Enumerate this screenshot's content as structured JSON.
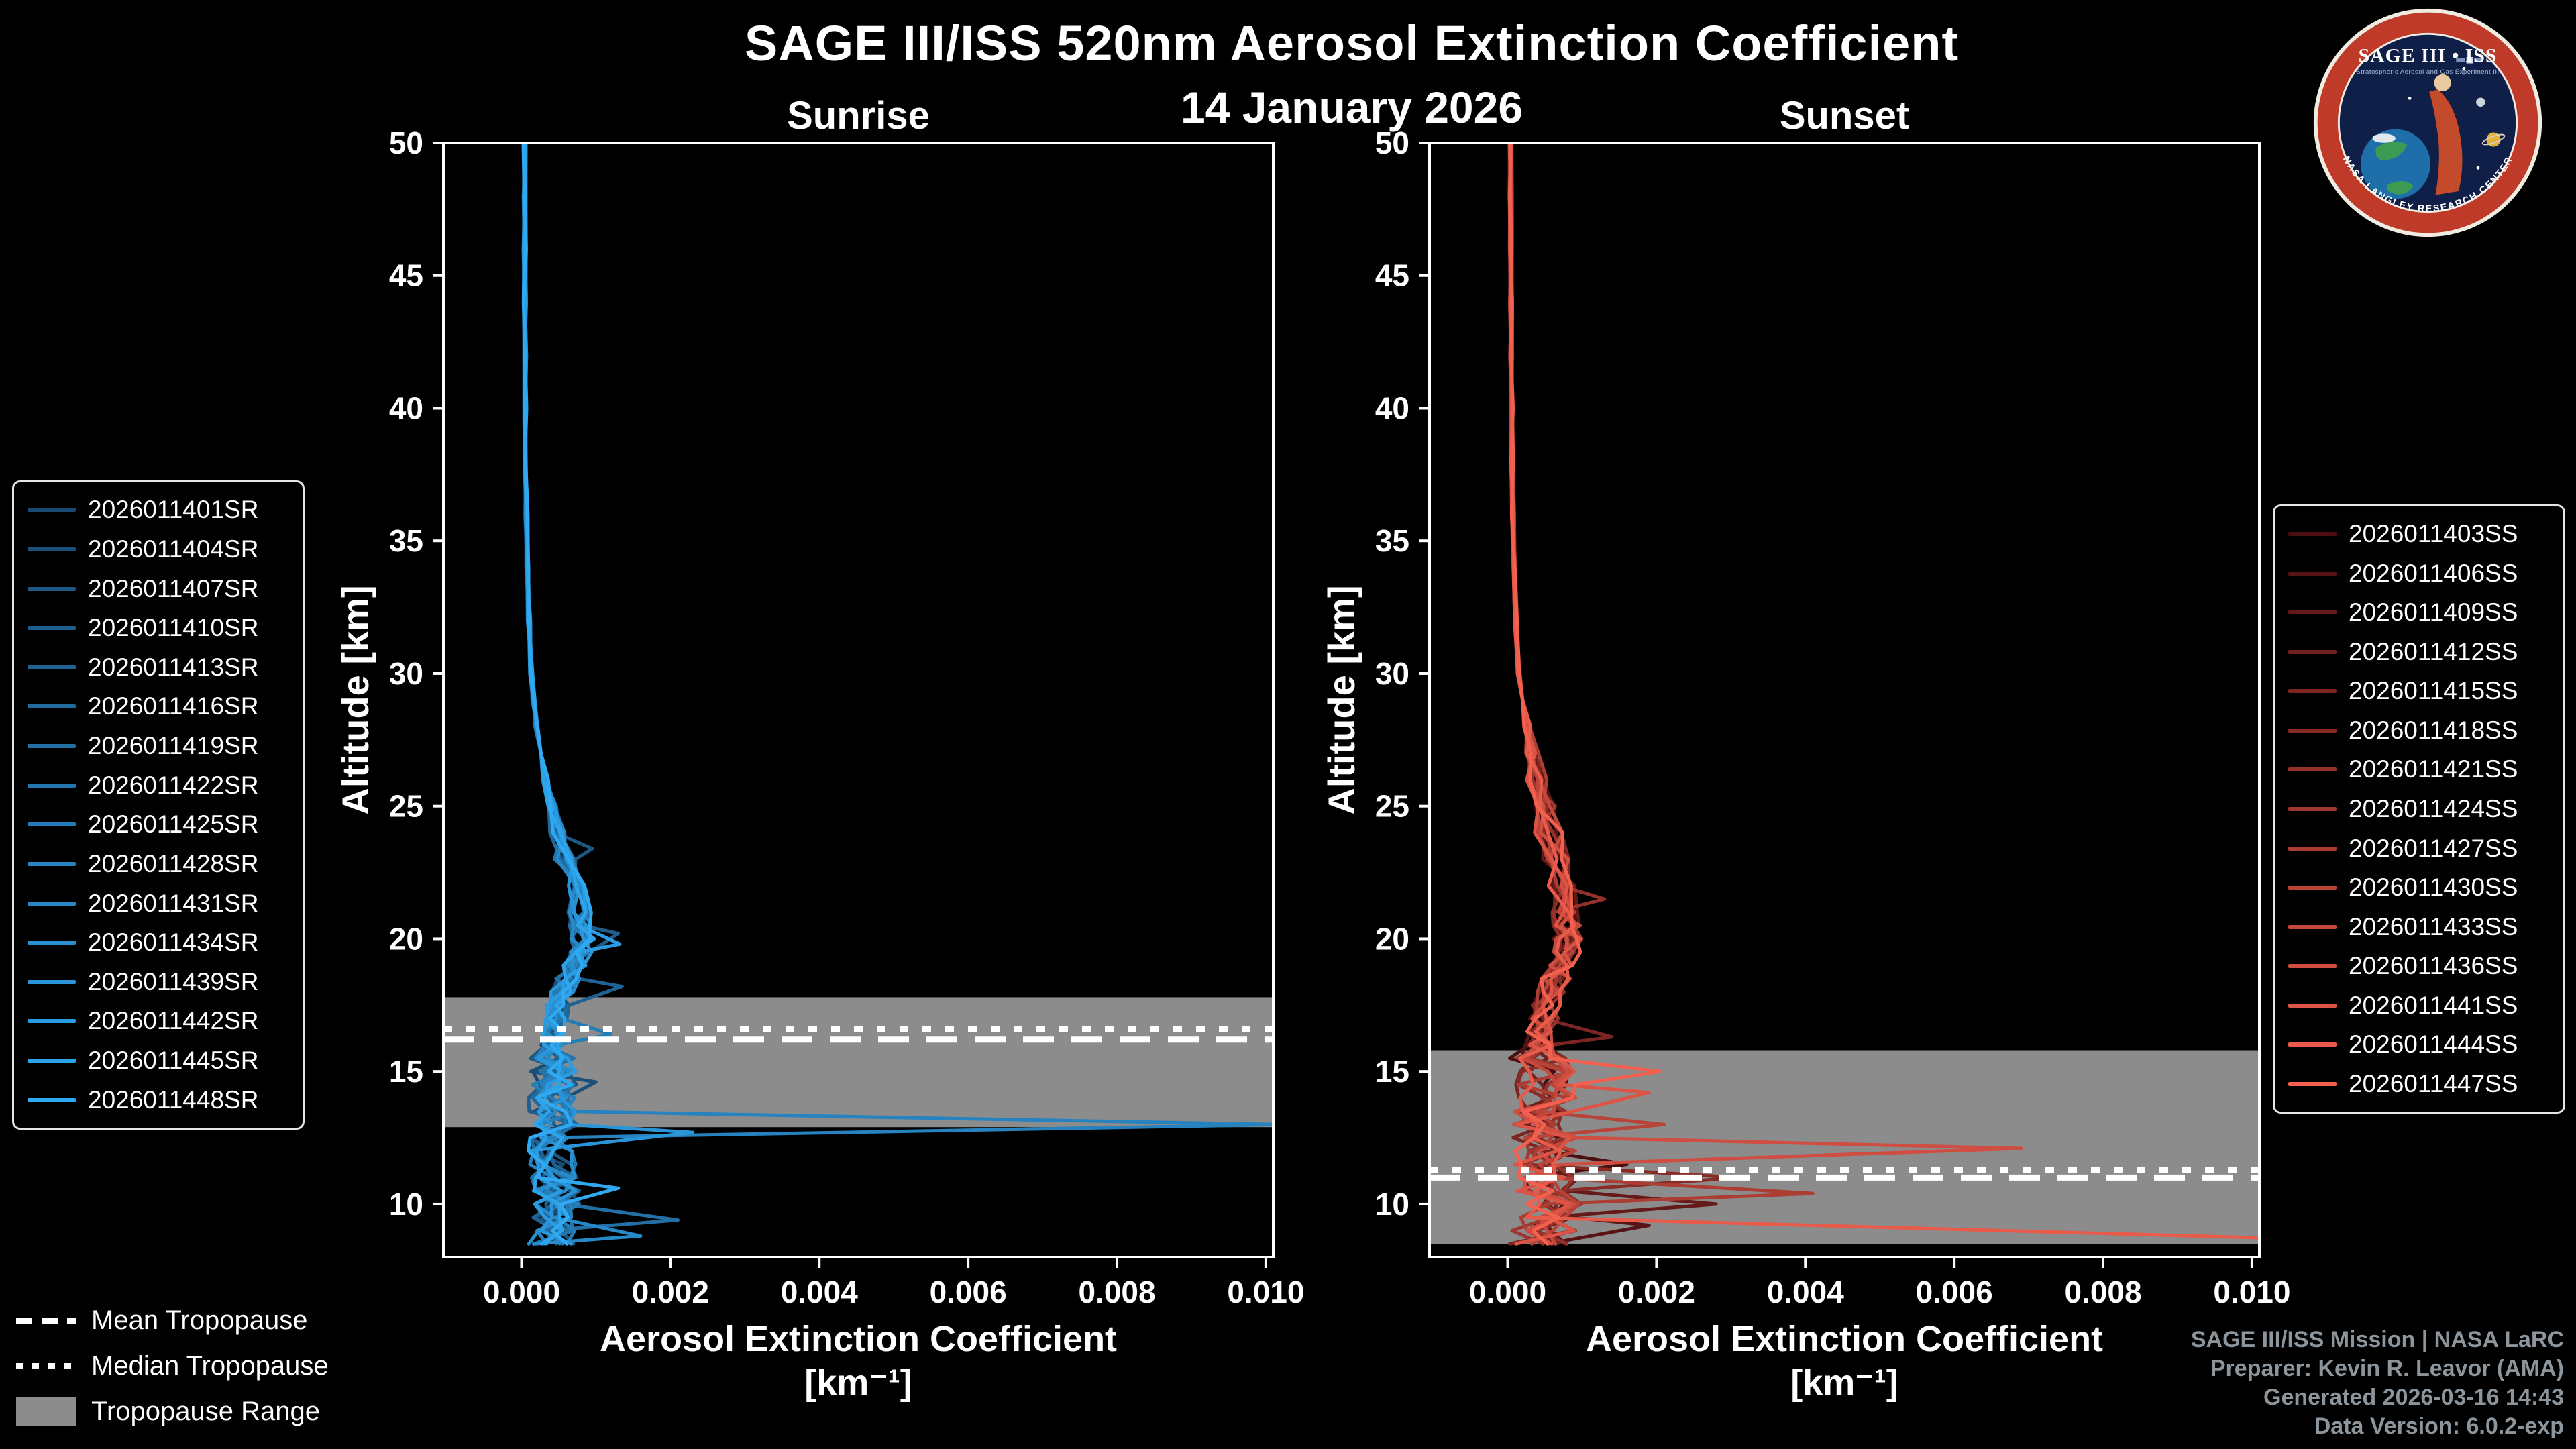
{
  "header": {
    "title": "SAGE III/ISS 520nm Aerosol Extinction Coefficient",
    "subtitle": "14 January 2026"
  },
  "tropopause_legend": {
    "mean_label": "Mean Tropopause",
    "median_label": "Median Tropopause",
    "range_label": "Tropopause Range"
  },
  "credits": {
    "lines": [
      "SAGE III/ISS Mission | NASA LaRC",
      "Preparer: Kevin R. Leavor (AMA)",
      "Generated 2026-03-16 14:43",
      "Data Version: 6.0.2-exp"
    ]
  },
  "logo": {
    "title": "SAGE III • ISS",
    "tagline": "Stratospheric Aerosol and Gas Experiment III",
    "arc_text": "NASA LANGLEY RESEARCH CENTER"
  },
  "chart_data": [
    {
      "id": "sunrise",
      "type": "line",
      "title": "Sunrise",
      "xlabel": "Aerosol Extinction Coefficient",
      "xlabel_units": "[km⁻¹]",
      "ylabel": "Altitude [km]",
      "xlim": [
        -0.00105,
        0.0101
      ],
      "ylim": [
        8.0,
        50
      ],
      "xticks": [
        0,
        0.002,
        0.004,
        0.006,
        0.008,
        0.01
      ],
      "xtick_labels": [
        "0.000",
        "0.002",
        "0.004",
        "0.006",
        "0.008",
        "0.010"
      ],
      "yticks": [
        10,
        15,
        20,
        25,
        30,
        35,
        40,
        45,
        50
      ],
      "grid": false,
      "color_start": "#1a4a73",
      "color_end": "#2ea9f2",
      "tropopause": {
        "mean_km": 16.2,
        "median_km": 16.6,
        "range_km": [
          12.9,
          17.8
        ]
      },
      "series_names": [
        "2026011401SR",
        "2026011404SR",
        "2026011407SR",
        "2026011410SR",
        "2026011413SR",
        "2026011416SR",
        "2026011419SR",
        "2026011422SR",
        "2026011425SR",
        "2026011428SR",
        "2026011431SR",
        "2026011434SR",
        "2026011439SR",
        "2026011442SR",
        "2026011445SR",
        "2026011448SR"
      ],
      "base_profile": [
        [
          50,
          4e-05
        ],
        [
          48,
          4e-05
        ],
        [
          46,
          4.2e-05
        ],
        [
          44,
          4.5e-05
        ],
        [
          42,
          4.8e-05
        ],
        [
          40,
          5e-05
        ],
        [
          38,
          5.5e-05
        ],
        [
          36,
          6.5e-05
        ],
        [
          34,
          8e-05
        ],
        [
          32,
          0.0001
        ],
        [
          30,
          0.00013
        ],
        [
          29,
          0.00016
        ],
        [
          28,
          0.0002
        ],
        [
          27,
          0.00026
        ],
        [
          26,
          0.00032
        ],
        [
          25,
          0.0004
        ],
        [
          24,
          0.0005
        ],
        [
          23,
          0.0006
        ],
        [
          22,
          0.0007
        ],
        [
          21,
          0.00078
        ],
        [
          20.5,
          0.0008
        ],
        [
          20,
          0.00082
        ],
        [
          19.5,
          0.0008
        ],
        [
          19,
          0.00072
        ],
        [
          18.5,
          0.00062
        ],
        [
          18,
          0.00055
        ],
        [
          17.5,
          0.0005
        ],
        [
          17,
          0.00046
        ],
        [
          16.5,
          0.00043
        ],
        [
          16,
          0.0004
        ],
        [
          15.5,
          0.00042
        ],
        [
          15,
          0.00044
        ],
        [
          14.5,
          0.00042
        ],
        [
          14,
          0.0004
        ],
        [
          13.5,
          0.00042
        ],
        [
          13,
          0.00044
        ],
        [
          12.5,
          0.00042
        ],
        [
          12,
          0.0004
        ],
        [
          11.5,
          0.00042
        ],
        [
          11,
          0.00044
        ],
        [
          10.5,
          0.00046
        ],
        [
          10,
          0.00048
        ],
        [
          9.5,
          0.00044
        ],
        [
          9,
          0.0004
        ],
        [
          8.5,
          0.00038
        ]
      ],
      "noise": {
        "start_km": 27,
        "amplitude": 0.00016,
        "low_km": 16,
        "low_factor": 2.0,
        "seed": 17
      },
      "spikes": [
        {
          "series": 9,
          "km": 13.0,
          "value": 0.0102,
          "width_km": 0.3
        },
        {
          "series": 12,
          "km": 12.7,
          "value": 0.0023,
          "width_km": 0.3
        },
        {
          "series": 3,
          "km": 20.2,
          "value": 0.0013,
          "width_km": 0.3
        },
        {
          "series": 6,
          "km": 9.4,
          "value": 0.0021,
          "width_km": 0.3
        },
        {
          "series": 10,
          "km": 8.8,
          "value": 0.0016,
          "width_km": 0.3
        },
        {
          "series": 15,
          "km": 10.6,
          "value": 0.0013,
          "width_km": 0.3
        },
        {
          "series": 8,
          "km": 16.4,
          "value": 0.0012,
          "width_km": 0.3
        },
        {
          "series": 4,
          "km": 18.2,
          "value": 0.00135,
          "width_km": 0.3
        },
        {
          "series": 13,
          "km": 19.8,
          "value": 0.00132,
          "width_km": 0.3
        },
        {
          "series": 1,
          "km": 14.6,
          "value": 0.001,
          "width_km": 0.3
        },
        {
          "series": 2,
          "km": 23.4,
          "value": 0.00095,
          "width_km": 0.3
        }
      ]
    },
    {
      "id": "sunset",
      "type": "line",
      "title": "Sunset",
      "xlabel": "Aerosol Extinction Coefficient",
      "xlabel_units": "[km⁻¹]",
      "ylabel": "Altitude [km]",
      "xlim": [
        -0.00105,
        0.0101
      ],
      "ylim": [
        8.0,
        50
      ],
      "xticks": [
        0,
        0.002,
        0.004,
        0.006,
        0.008,
        0.01
      ],
      "xtick_labels": [
        "0.000",
        "0.002",
        "0.004",
        "0.006",
        "0.008",
        "0.010"
      ],
      "yticks": [
        10,
        15,
        20,
        25,
        30,
        35,
        40,
        45,
        50
      ],
      "grid": false,
      "color_start": "#4c0e10",
      "color_end": "#f4604e",
      "tropopause": {
        "mean_km": 11.0,
        "median_km": 11.3,
        "range_km": [
          8.5,
          15.8
        ]
      },
      "series_names": [
        "2026011403SS",
        "2026011406SS",
        "2026011409SS",
        "2026011412SS",
        "2026011415SS",
        "2026011418SS",
        "2026011421SS",
        "2026011424SS",
        "2026011427SS",
        "2026011430SS",
        "2026011433SS",
        "2026011436SS",
        "2026011441SS",
        "2026011444SS",
        "2026011447SS"
      ],
      "base_profile": [
        [
          50,
          4e-05
        ],
        [
          48,
          4e-05
        ],
        [
          46,
          4.2e-05
        ],
        [
          44,
          4.6e-05
        ],
        [
          42,
          5e-05
        ],
        [
          40,
          5.5e-05
        ],
        [
          38,
          6e-05
        ],
        [
          36,
          7e-05
        ],
        [
          34,
          9e-05
        ],
        [
          32,
          0.00011
        ],
        [
          30,
          0.00015
        ],
        [
          29,
          0.0002
        ],
        [
          28,
          0.00026
        ],
        [
          27,
          0.00032
        ],
        [
          26,
          0.0004
        ],
        [
          25,
          0.00048
        ],
        [
          24,
          0.00056
        ],
        [
          23,
          0.00064
        ],
        [
          22,
          0.00072
        ],
        [
          21,
          0.00078
        ],
        [
          20.5,
          0.0008
        ],
        [
          20,
          0.0008
        ],
        [
          19.5,
          0.00078
        ],
        [
          19,
          0.00072
        ],
        [
          18.5,
          0.00064
        ],
        [
          18,
          0.00058
        ],
        [
          17.5,
          0.00052
        ],
        [
          17,
          0.00048
        ],
        [
          16.5,
          0.00044
        ],
        [
          16,
          0.00042
        ],
        [
          15.5,
          0.00044
        ],
        [
          15,
          0.00048
        ],
        [
          14.5,
          0.0005
        ],
        [
          14,
          0.00048
        ],
        [
          13.5,
          0.00046
        ],
        [
          13,
          0.00048
        ],
        [
          12.5,
          0.0005
        ],
        [
          12,
          0.00052
        ],
        [
          11.5,
          0.0005
        ],
        [
          11,
          0.00052
        ],
        [
          10.5,
          0.00055
        ],
        [
          10,
          0.00058
        ],
        [
          9.5,
          0.00052
        ],
        [
          9,
          0.00048
        ],
        [
          8.5,
          0.00045
        ]
      ],
      "noise": {
        "start_km": 29,
        "amplitude": 0.0002,
        "low_km": 16,
        "low_factor": 2.2,
        "seed": 41
      },
      "spikes": [
        {
          "series": 13,
          "km": 8.7,
          "value": 0.0105,
          "width_km": 0.5
        },
        {
          "series": 11,
          "km": 12.1,
          "value": 0.0069,
          "width_km": 0.3
        },
        {
          "series": 8,
          "km": 10.4,
          "value": 0.0041,
          "width_km": 0.3
        },
        {
          "series": 5,
          "km": 11.0,
          "value": 0.0031,
          "width_km": 0.3
        },
        {
          "series": 2,
          "km": 10.0,
          "value": 0.0028,
          "width_km": 0.3
        },
        {
          "series": 14,
          "km": 15.0,
          "value": 0.00205,
          "width_km": 0.3
        },
        {
          "series": 12,
          "km": 14.2,
          "value": 0.0019,
          "width_km": 0.3
        },
        {
          "series": 4,
          "km": 16.3,
          "value": 0.0014,
          "width_km": 0.3
        },
        {
          "series": 9,
          "km": 13.0,
          "value": 0.0021,
          "width_km": 0.3
        },
        {
          "series": 1,
          "km": 9.2,
          "value": 0.0019,
          "width_km": 0.3
        },
        {
          "series": 6,
          "km": 21.5,
          "value": 0.0013,
          "width_km": 0.3
        },
        {
          "series": 0,
          "km": 11.5,
          "value": 0.0016,
          "width_km": 0.3
        }
      ]
    }
  ]
}
